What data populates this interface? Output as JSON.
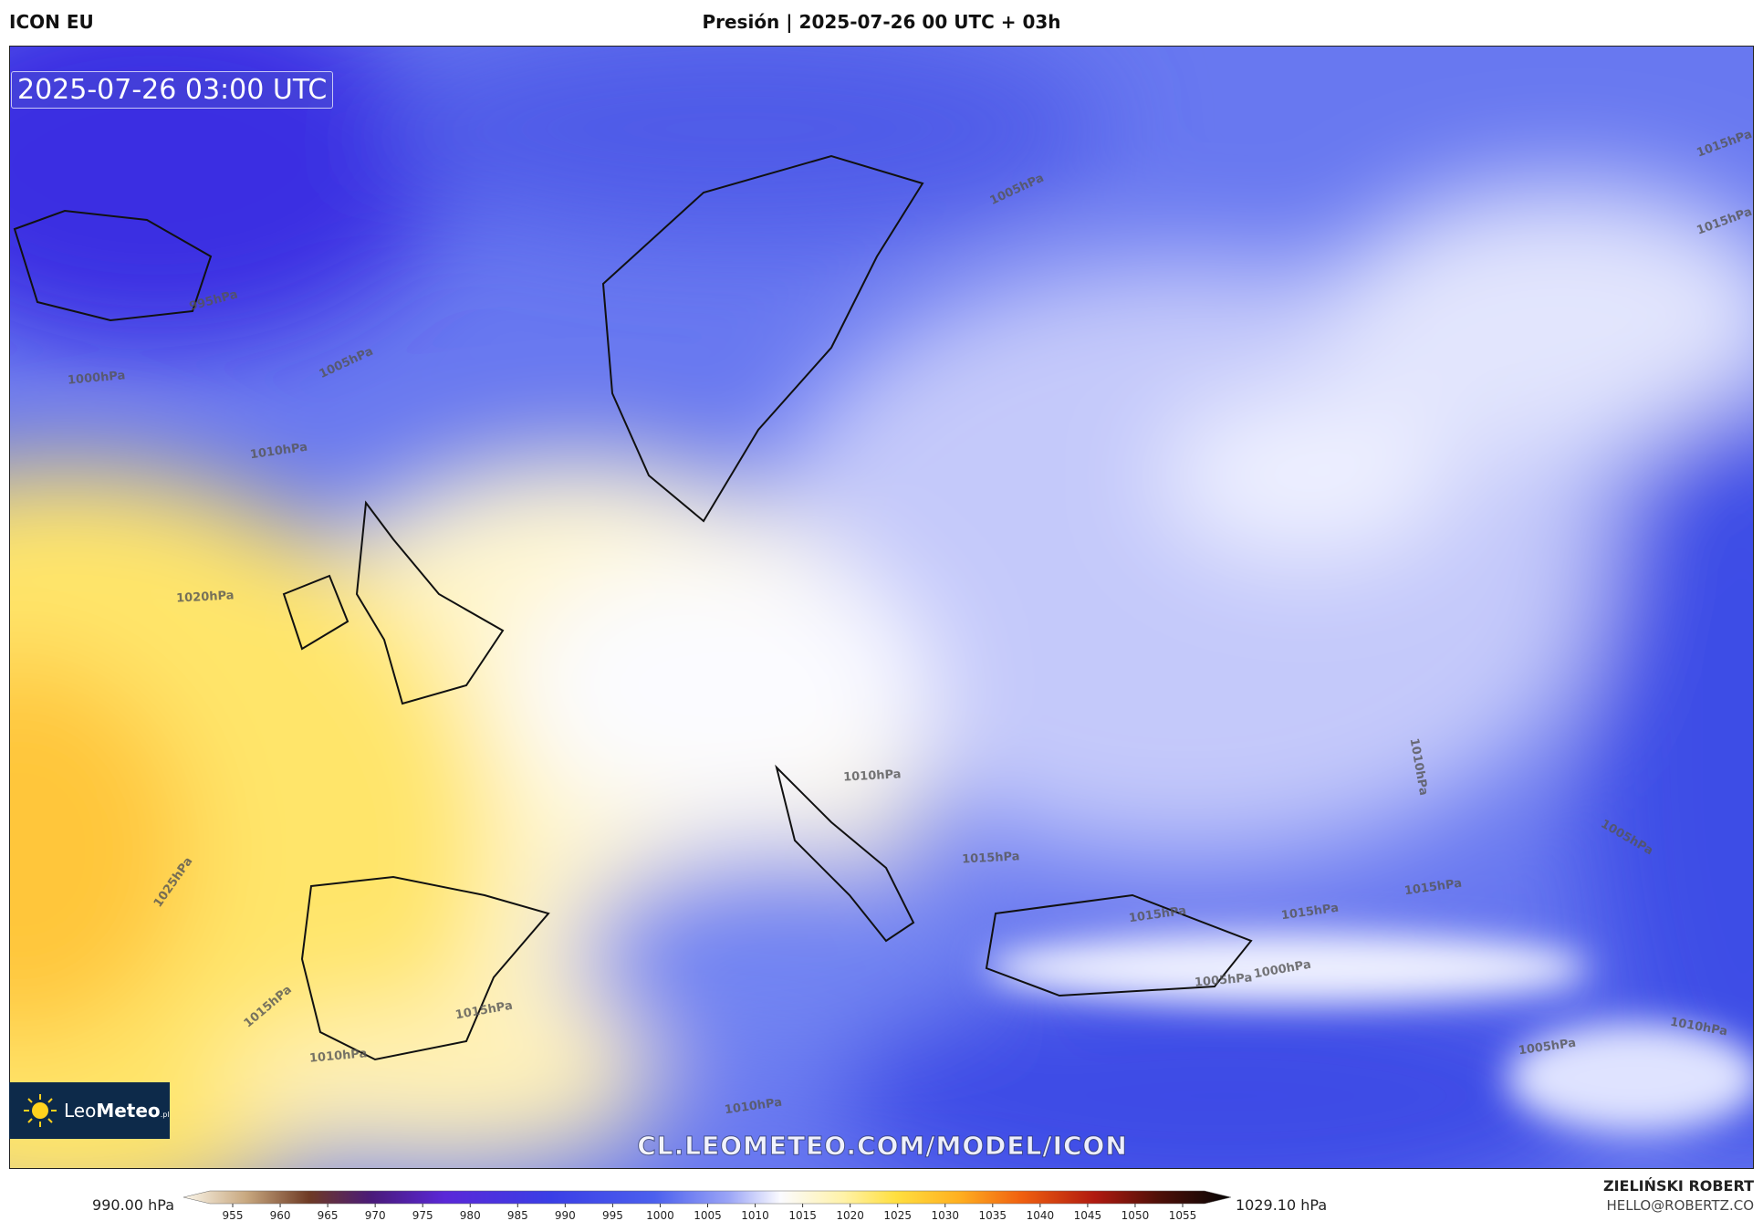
{
  "header": {
    "model": "ICON EU",
    "title": "Presión | 2025-07-26 00 UTC + 03h"
  },
  "map": {
    "timestamp": "2025-07-26 03:00 UTC",
    "watermark": "CL.LEOMETEO.COM/MODEL/ICON",
    "logo": {
      "leo": "Leo",
      "meteo": "Meteo",
      "suffix": ".pl"
    },
    "isobar_labels": [
      "995hPa",
      "1000hPa",
      "1005hPa",
      "1010hPa",
      "1020hPa",
      "1025hPa",
      "1015hPa",
      "1010hPa",
      "1015hPa",
      "1010hPa",
      "1005hPa",
      "1015hPa",
      "1015hPa",
      "1010hPa",
      "1015hPa",
      "1015hPa",
      "1015hPa",
      "1000hPa",
      "1005hPa",
      "1005hPa",
      "1010hPa",
      "1005hPa",
      "1010hPa",
      "1015hPa"
    ]
  },
  "colorbar": {
    "min_label": "990.00 hPa",
    "max_label": "1029.10 hPa",
    "ticks": [
      955,
      960,
      965,
      970,
      975,
      980,
      985,
      990,
      995,
      1000,
      1005,
      1010,
      1015,
      1020,
      1025,
      1030,
      1035,
      1040,
      1045,
      1050,
      1055
    ]
  },
  "footer": {
    "author": "ZIELIŃSKI ROBERT",
    "email": "HELLO@ROBERTZ.CO"
  }
}
